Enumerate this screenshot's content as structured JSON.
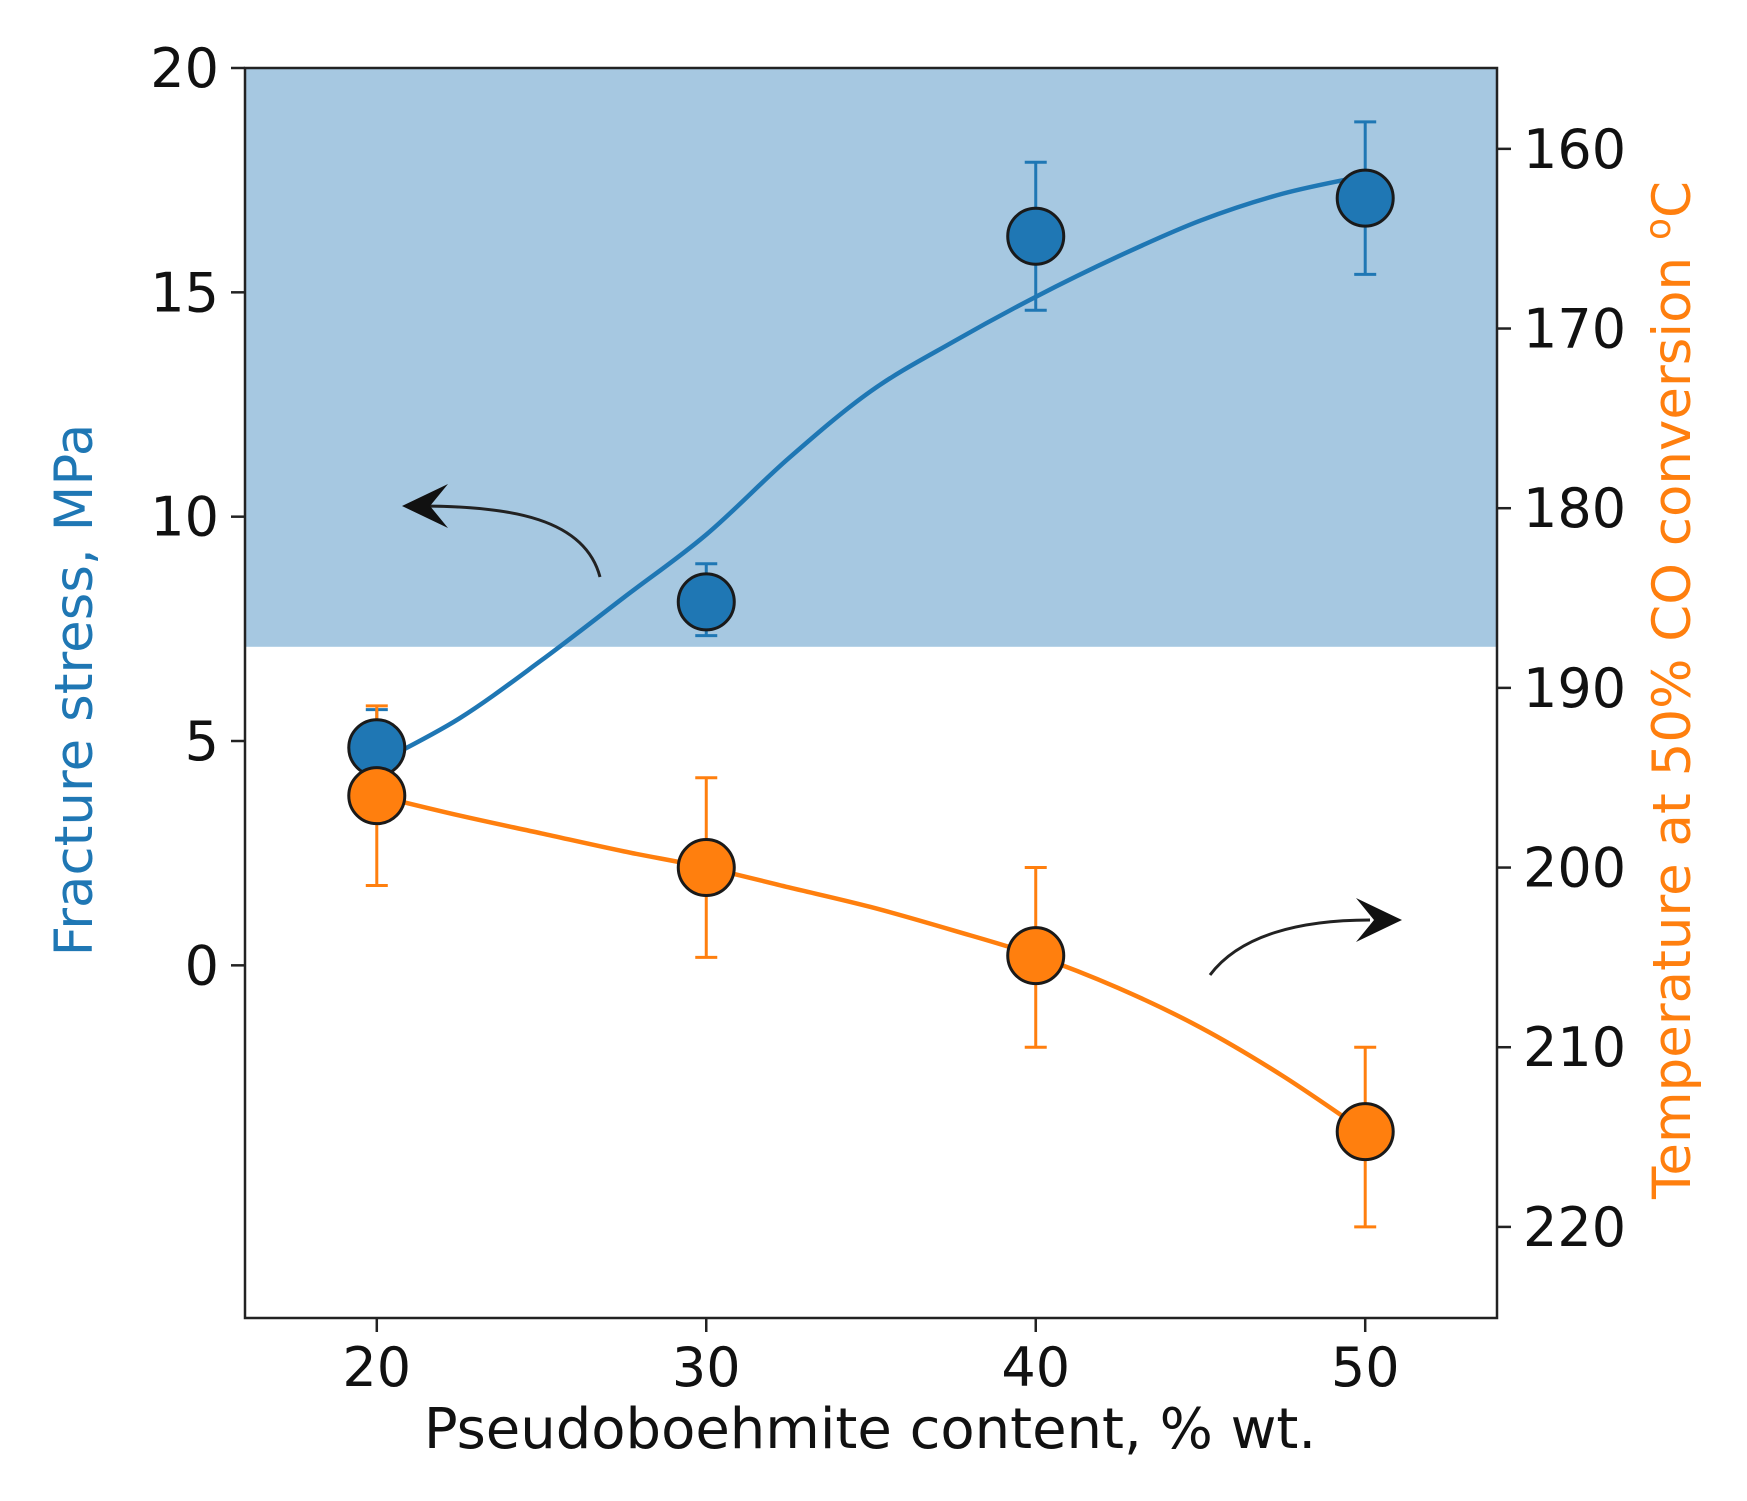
{
  "chart_data": {
    "type": "scatter",
    "title": "",
    "xlabel": "Pseudoboehmite content, % wt.",
    "ylabel_left": "Fracture stress, MPa",
    "ylabel_right": "Temperature at 50% CO conversion °C",
    "ylabel_right_main": "Temperature at 50% CO conversion ",
    "ylabel_right_deg": "o",
    "ylabel_right_unit": "C",
    "xlim": [
      16,
      54
    ],
    "ylim_left": [
      -7.86,
      20
    ],
    "ylim_right": [
      225.07,
      155.5
    ],
    "x_ticks": [
      20,
      30,
      40,
      50
    ],
    "x_tick_labels": [
      "20",
      "30",
      "40",
      "50"
    ],
    "y_left_ticks": [
      0,
      5,
      10,
      15,
      20
    ],
    "y_left_tick_labels": [
      "0",
      "5",
      "10",
      "15",
      "20"
    ],
    "y_right_ticks": [
      160,
      170,
      180,
      190,
      200,
      210,
      220
    ],
    "y_right_tick_labels": [
      "160",
      "170",
      "180",
      "190",
      "200",
      "210",
      "220"
    ],
    "shaded_region": {
      "axis": "left",
      "y_from": 7.1,
      "y_to": 20,
      "color": "#a6c8e1"
    },
    "series": [
      {
        "name": "Fracture stress",
        "axis": "left",
        "color": "#1f77b4",
        "x": [
          20,
          30,
          40,
          50
        ],
        "y": [
          4.85,
          8.1,
          16.25,
          17.1
        ],
        "err_low": [
          3.8,
          7.35,
          14.6,
          15.4
        ],
        "err_high": [
          5.7,
          8.95,
          17.9,
          18.8
        ],
        "fit_curve": {
          "x": [
            20,
            22.5,
            25,
            27.5,
            30,
            32.5,
            35,
            37.5,
            40,
            42.5,
            45,
            47.5,
            50
          ],
          "y": [
            4.5,
            5.5,
            6.8,
            8.2,
            9.6,
            11.3,
            12.8,
            13.9,
            14.9,
            15.8,
            16.6,
            17.2,
            17.6
          ]
        }
      },
      {
        "name": "Temperature at 50% CO conversion",
        "axis": "right",
        "color": "#ff7f0e",
        "x": [
          20,
          30,
          40,
          50
        ],
        "y": [
          196,
          200,
          204.9,
          214.7
        ],
        "err_low": [
          191,
          195,
          200,
          210
        ],
        "err_high": [
          201,
          205,
          210,
          220
        ],
        "fit_curve": {
          "x": [
            20,
            22.5,
            25,
            27.5,
            30,
            32.5,
            35,
            37.5,
            40,
            42.5,
            45,
            47.5,
            50
          ],
          "y": [
            196,
            197.1,
            198.1,
            199.1,
            200,
            201.1,
            202.2,
            203.5,
            204.9,
            206.7,
            208.9,
            211.6,
            214.7
          ]
        }
      }
    ],
    "annotations": [
      {
        "text": "",
        "type": "curved-arrow",
        "direction": "left",
        "points_to": "left axis"
      },
      {
        "text": "",
        "type": "curved-arrow",
        "direction": "right",
        "points_to": "right axis"
      }
    ]
  }
}
